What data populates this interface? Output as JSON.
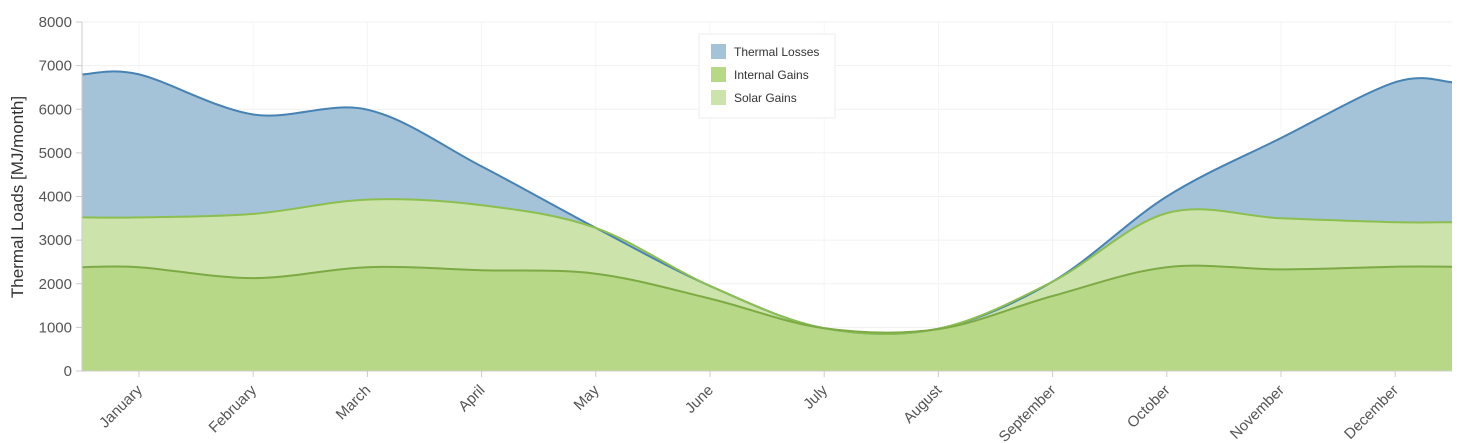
{
  "chart_data": {
    "type": "area",
    "ylabel": "Thermal Loads [MJ/month]",
    "xlabel": "",
    "ylim": [
      0,
      8000
    ],
    "yticks": [
      0,
      1000,
      2000,
      3000,
      4000,
      5000,
      6000,
      7000,
      8000
    ],
    "categories": [
      "January",
      "February",
      "March",
      "April",
      "May",
      "June",
      "July",
      "August",
      "September",
      "October",
      "November",
      "December"
    ],
    "grid": true,
    "legend_position": "top-center",
    "series": [
      {
        "name": "Thermal Losses",
        "color": "#4682b4",
        "fill": "#a4c2d8",
        "values": [
          6800,
          5880,
          5990,
          4690,
          3280,
          1950,
          980,
          970,
          2050,
          4000,
          5340,
          6620
        ]
      },
      {
        "name": "Internal Gains",
        "color": "#7daa45",
        "fill": "#b7d886",
        "values": [
          2380,
          2130,
          2380,
          2310,
          2230,
          1660,
          980,
          960,
          1720,
          2380,
          2330,
          2390
        ]
      },
      {
        "name": "Solar Gains",
        "color": "#8cbf50",
        "fill": "#cce3ab",
        "values": [
          3520,
          3600,
          3930,
          3800,
          3280,
          1950,
          980,
          970,
          2050,
          3620,
          3500,
          3410
        ]
      }
    ]
  }
}
